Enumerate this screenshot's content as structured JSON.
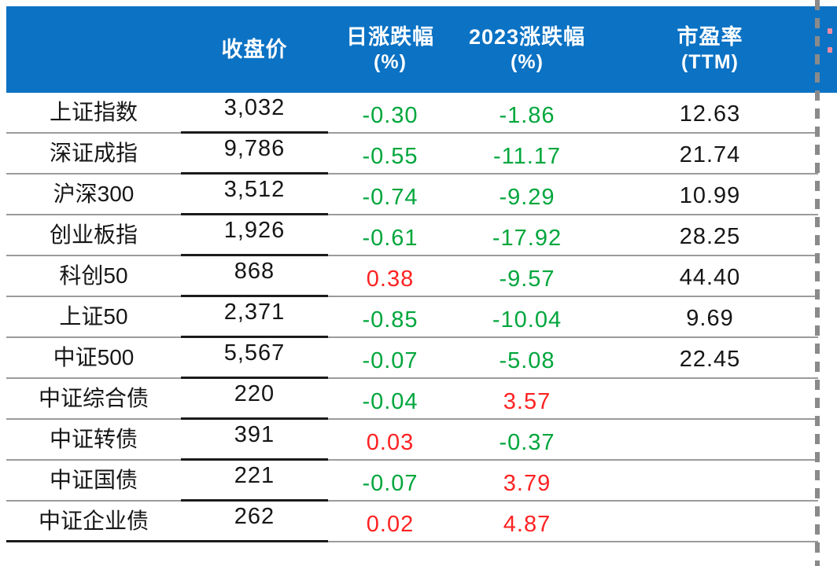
{
  "meta": {
    "colors": {
      "header_blue": "#0b72c4",
      "negative_green": "#00a63c",
      "positive_red": "#ff2222",
      "grid_gray": "#9b9b9b",
      "strong_border_black": "#1b1b1b",
      "marquee_gray": "#8a8a8a"
    },
    "color_convention": "positive change red, negative change green (CN market convention)"
  },
  "chart_data": {
    "type": "table",
    "columns": [
      {
        "label": "",
        "sub": ""
      },
      {
        "label": "收盘价",
        "sub": ""
      },
      {
        "label": "日涨跌幅",
        "sub": "(%)"
      },
      {
        "label": "2023涨跌幅",
        "sub": "(%)"
      },
      {
        "label": "市盈率",
        "sub": "(TTM)"
      }
    ],
    "rows": [
      {
        "name": "上证指数",
        "close": "3,032",
        "daily_pct": "-0.30",
        "ytd2023_pct": "-1.86",
        "pe_ttm": "12.63"
      },
      {
        "name": "深证成指",
        "close": "9,786",
        "daily_pct": "-0.55",
        "ytd2023_pct": "-11.17",
        "pe_ttm": "21.74"
      },
      {
        "name": "沪深300",
        "close": "3,512",
        "daily_pct": "-0.74",
        "ytd2023_pct": "-9.29",
        "pe_ttm": "10.99"
      },
      {
        "name": "创业板指",
        "close": "1,926",
        "daily_pct": "-0.61",
        "ytd2023_pct": "-17.92",
        "pe_ttm": "28.25"
      },
      {
        "name": "科创50",
        "close": "868",
        "daily_pct": "0.38",
        "ytd2023_pct": "-9.57",
        "pe_ttm": "44.40"
      },
      {
        "name": "上证50",
        "close": "2,371",
        "daily_pct": "-0.85",
        "ytd2023_pct": "-10.04",
        "pe_ttm": "9.69"
      },
      {
        "name": "中证500",
        "close": "5,567",
        "daily_pct": "-0.07",
        "ytd2023_pct": "-5.08",
        "pe_ttm": "22.45"
      },
      {
        "name": "中证综合债",
        "close": "220",
        "daily_pct": "-0.04",
        "ytd2023_pct": "3.57",
        "pe_ttm": ""
      },
      {
        "name": "中证转债",
        "close": "391",
        "daily_pct": "0.03",
        "ytd2023_pct": "-0.37",
        "pe_ttm": ""
      },
      {
        "name": "中证国债",
        "close": "221",
        "daily_pct": "-0.07",
        "ytd2023_pct": "3.79",
        "pe_ttm": ""
      },
      {
        "name": "中证企业债",
        "close": "262",
        "daily_pct": "0.02",
        "ytd2023_pct": "4.87",
        "pe_ttm": ""
      }
    ]
  }
}
